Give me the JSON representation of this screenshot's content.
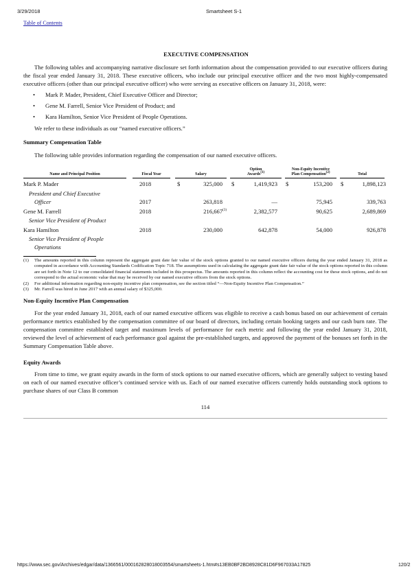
{
  "browser": {
    "date": "3/29/2018",
    "title": "Smartsheet S-1",
    "url": "https://www.sec.gov/Archives/edgar/data/1366561/000162828018003554/smartsheets-1.htm#s13EB0BF2BD8928C81D6F967033A17825",
    "page_count": "120/2"
  },
  "toc_link": "Table of Contents",
  "section_title": "EXECUTIVE COMPENSATION",
  "intro": "The following tables and accompanying narrative disclosure set forth information about the compensation provided to our executive officers during the fiscal year ended January 31, 2018. These executive officers, who include our principal executive officer and the two most highly-compensated executive officers (other than our principal executive officer) who were serving as executive officers on January 31, 2018, were:",
  "bullets": [
    "Mark P. Mader, President, Chief Executive Officer and Director;",
    "Gene M. Farrell, Senior Vice President of Product; and",
    "Kara Hamilton, Senior Vice President of People Operations."
  ],
  "bullet_char": "•",
  "named_note": "We refer to these individuals as our “named executive officers.”",
  "summary": {
    "heading": "Summary Compensation Table",
    "intro": "The following table provides information regarding the compensation of our named executive officers.",
    "headers": {
      "name": "Name and Principal Position",
      "year": "Fiscal Year",
      "salary": "Salary",
      "option1": "Option",
      "option2": "Awards",
      "option_sup": "(1)",
      "nei1": "Non-Equity Incentive",
      "nei2": "Plan Compensation",
      "nei_sup": "(2)",
      "total": "Total"
    },
    "currency": "$",
    "rows": [
      {
        "name": "Mark P. Mader",
        "year": "2018",
        "salary": "325,000",
        "option": "1,419,923",
        "nei": "153,200",
        "total": "1,898,123"
      },
      {
        "title1": "President and Chief Executive",
        "title2": "Officer",
        "year": "2017",
        "salary": "263,818",
        "option": "—",
        "nei": "75,945",
        "total": "339,763"
      },
      {
        "name": "Gene M. Farrell",
        "year": "2018",
        "salary": "216,667",
        "salary_sup": "(3)",
        "option": "2,382,577",
        "nei": "90,625",
        "total": "2,689,869"
      },
      {
        "title1": "Senior Vice President of Product"
      },
      {
        "name": "Kara Hamilton",
        "year": "2018",
        "salary": "230,000",
        "option": "642,878",
        "nei": "54,000",
        "total": "926,878"
      },
      {
        "title1": "Senior Vice President of People",
        "title2": "Operations"
      }
    ]
  },
  "footnotes": [
    {
      "n": "(1)",
      "text": "The amounts reported in this column represent the aggregate grant date fair value of the stock options granted to our named executive officers during the year ended January 31, 2018 as computed in accordance with Accounting Standards Codification Topic 718. The assumptions used in calculating the aggregate grant date fair value of the stock options reported in this column are set forth in Note 12 to our consolidated financial statements included in this prospectus. The amounts reported in this column reflect the accounting cost for these stock options, and do not correspond to the actual economic value that may be received by our named executive officers from the stock options."
    },
    {
      "n": "(2)",
      "text": "For additional information regarding non-equity incentive plan compensation, see the section titled “—Non-Equity Incentive Plan Compensation.”"
    },
    {
      "n": "(3)",
      "text": "Mr. Farrell was hired in June 2017 with an annual salary of $325,000."
    }
  ],
  "nei_section": {
    "heading": "Non-Equity Incentive Plan Compensation",
    "text": "For the year ended January 31, 2018, each of our named executive officers was eligible to receive a cash bonus based on our achievement of certain performance metrics established by the compensation committee of our board of directors, including certain booking targets and our cash burn rate. The compensation committee established target and maximum levels of performance for each metric and following the year ended January 31, 2018, reviewed the level of achievement of each performance goal against the pre-established targets, and approved the payment of the bonuses set forth in the Summary Compensation Table above."
  },
  "equity_section": {
    "heading": "Equity Awards",
    "text": "From time to time, we grant equity awards in the form of stock options to our named executive officers, which are generally subject to vesting based on each of our named executive officer’s continued service with us. Each of our named executive officers currently holds outstanding stock options to purchase shares of our Class B common"
  },
  "page_number": "114"
}
